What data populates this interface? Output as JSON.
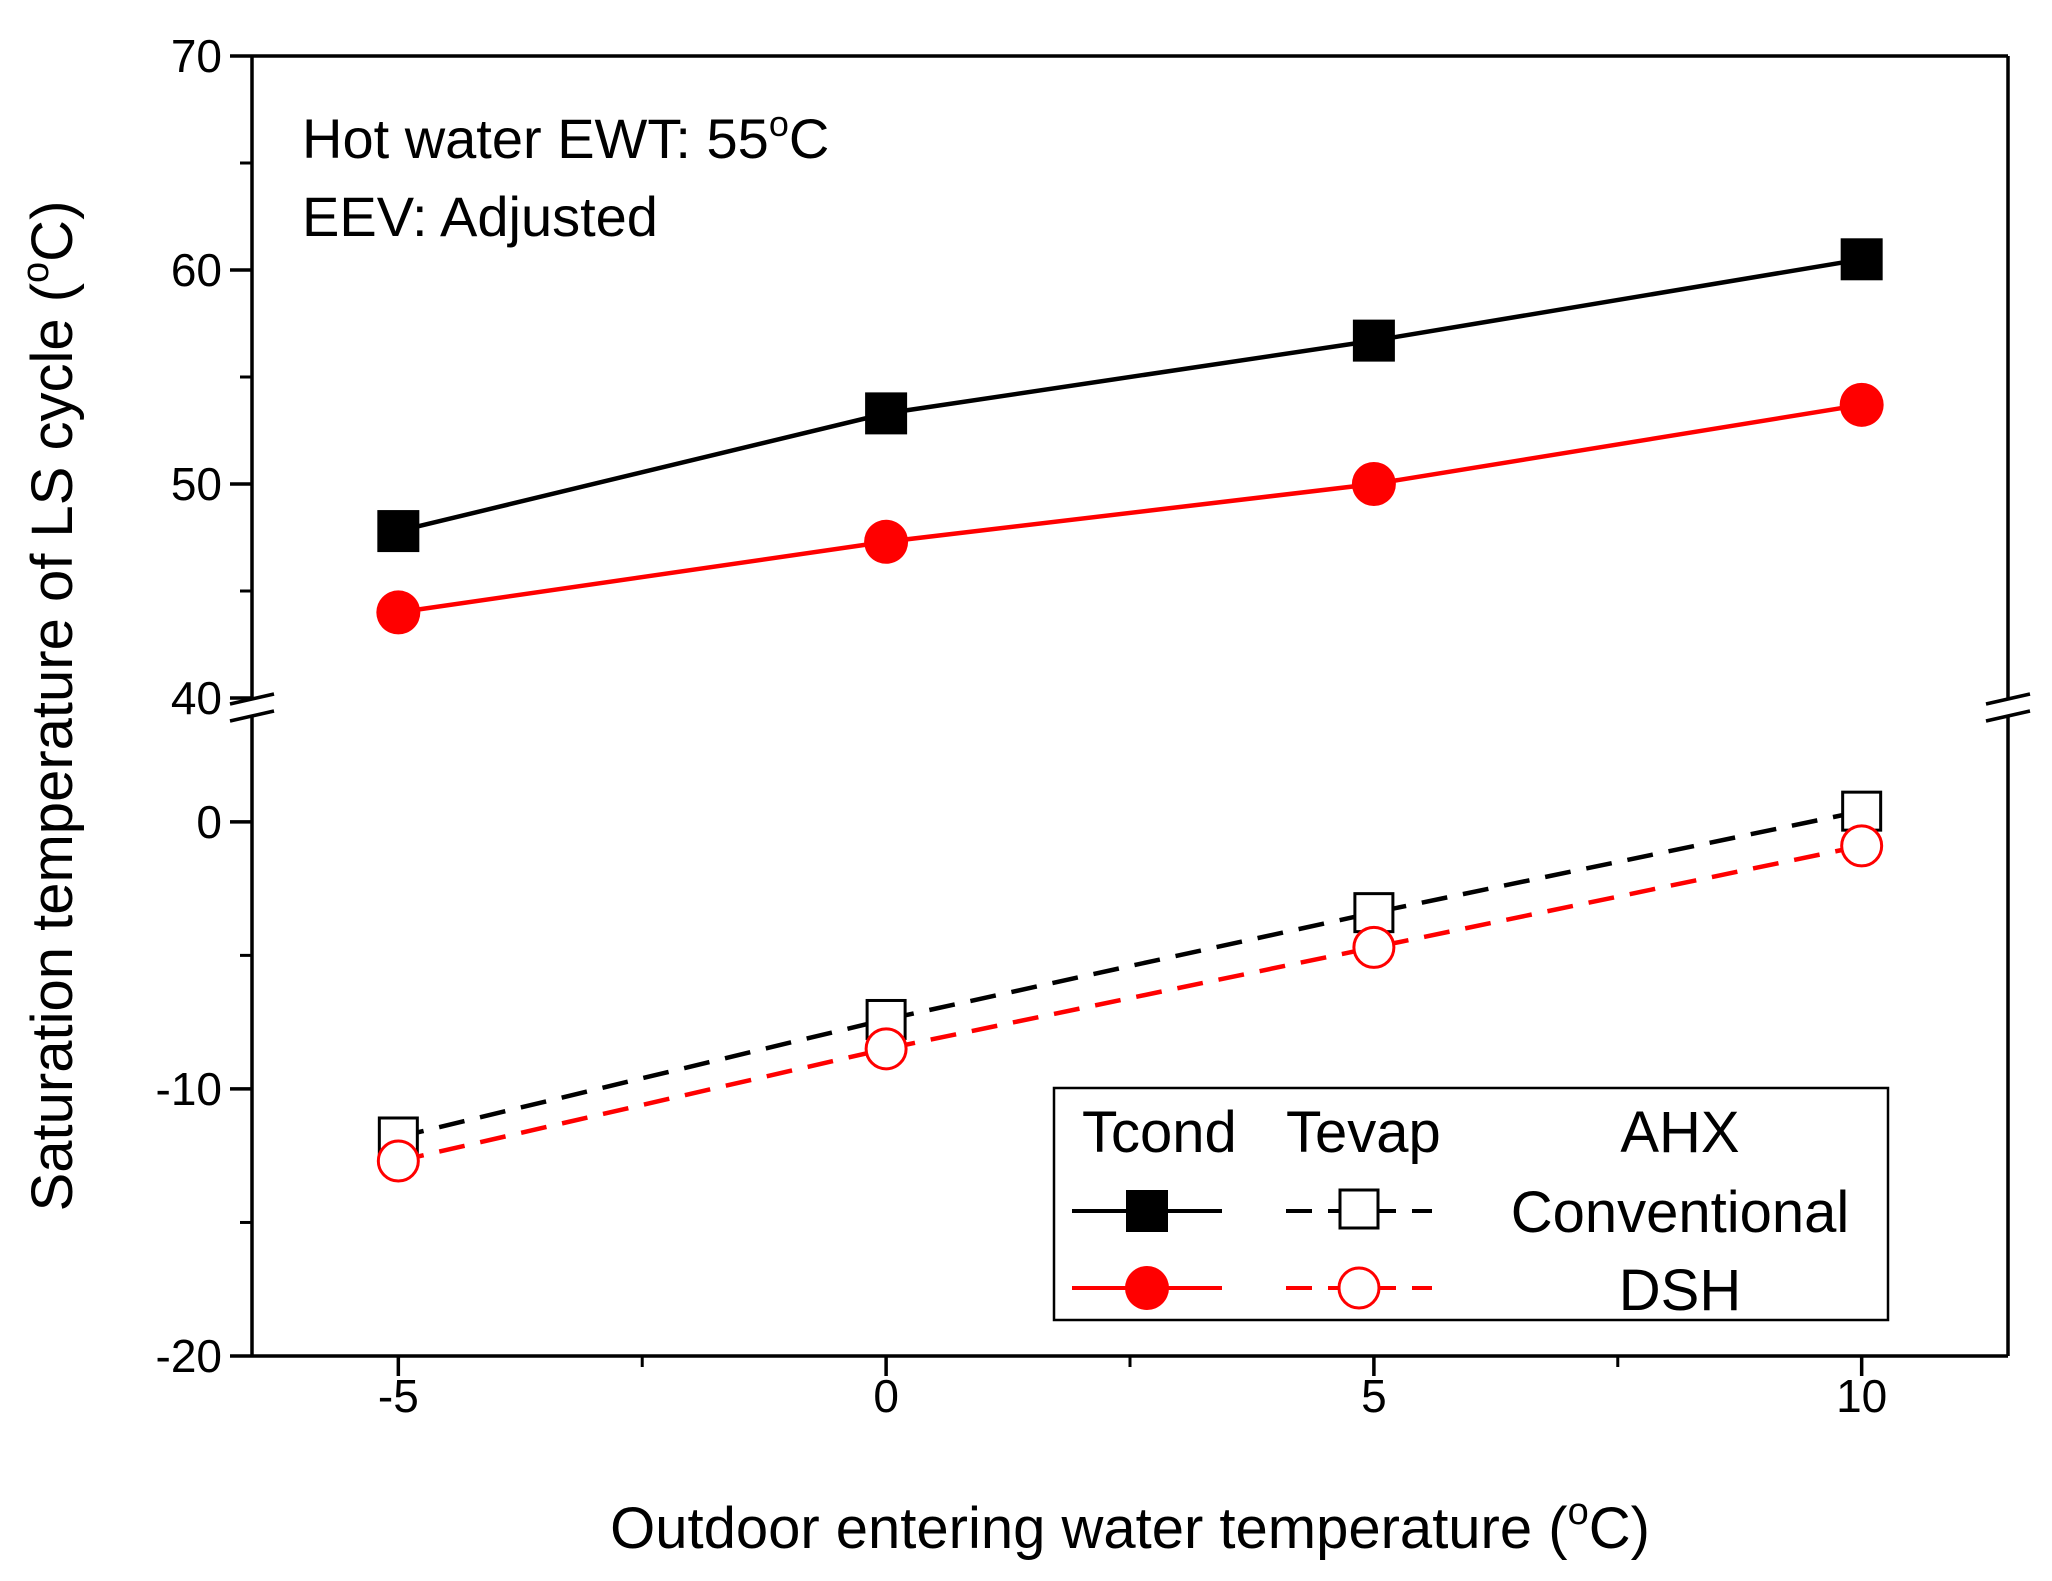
{
  "chart_data": {
    "type": "line",
    "title": "",
    "xlabel": {
      "main": "Outdoor entering water temperature (",
      "sup": "o",
      "tail": "C)"
    },
    "ylabel": {
      "main": "Saturation temperature of LS cycle (",
      "sup": "o",
      "tail": "C)"
    },
    "x": [
      -5,
      0,
      5,
      10
    ],
    "xlim": [
      -6.5,
      11.5
    ],
    "x_ticks": [
      "-5",
      "0",
      "5",
      "10"
    ],
    "y_break": true,
    "y_upper_range": [
      40,
      70
    ],
    "y_upper_ticks": [
      "40",
      "50",
      "60",
      "70"
    ],
    "y_lower_range": [
      -20,
      4
    ],
    "y_lower_ticks": [
      "-20",
      "-10",
      "0"
    ],
    "annotations": {
      "line1_main": "Hot water EWT: 55",
      "line1_sup": "o",
      "line1_tail": "C",
      "line2": "EEV: Adjusted"
    },
    "series": [
      {
        "name": "Tcond Conventional",
        "segment": "upper",
        "color": "#000000",
        "marker": "square-filled",
        "dash": "solid",
        "values": [
          47.8,
          53.3,
          56.7,
          60.5
        ]
      },
      {
        "name": "Tcond DSH",
        "segment": "upper",
        "color": "#ff0000",
        "marker": "circle-filled",
        "dash": "solid",
        "values": [
          44.0,
          47.3,
          50.0,
          53.7
        ]
      },
      {
        "name": "Tevap Conventional",
        "segment": "lower",
        "color": "#000000",
        "marker": "square-open",
        "dash": "dashed",
        "values": [
          -11.8,
          -7.4,
          -3.4,
          0.4
        ]
      },
      {
        "name": "Tevap DSH",
        "segment": "lower",
        "color": "#ff0000",
        "marker": "circle-open",
        "dash": "dashed",
        "values": [
          -12.7,
          -8.5,
          -4.7,
          -0.9
        ]
      }
    ],
    "legend": {
      "position": "bottom-right",
      "header_tcond": "Tcond",
      "header_tevap": "Tevap",
      "header_ahx": "AHX",
      "row1_label": "Conventional",
      "row2_label": "DSH"
    }
  }
}
